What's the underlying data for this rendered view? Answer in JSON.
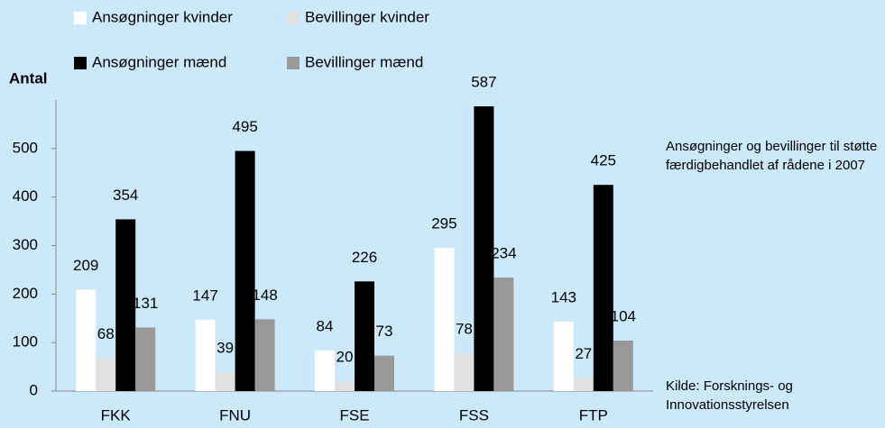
{
  "chart_data": {
    "type": "bar",
    "y_label": "Antal",
    "categories": [
      "FKK",
      "FNU",
      "FSE",
      "FSS",
      "FTP"
    ],
    "series": [
      {
        "name": "Ansøgninger kvinder",
        "color": "#ffffff",
        "values": [
          209,
          147,
          84,
          295,
          143
        ]
      },
      {
        "name": "Bevillinger kvinder",
        "color": "#e0e0e0",
        "values": [
          68,
          39,
          20,
          78,
          27
        ]
      },
      {
        "name": "Ansøgninger mænd",
        "color": "#000000",
        "values": [
          354,
          495,
          226,
          587,
          425
        ]
      },
      {
        "name": "Bevillinger mænd",
        "color": "#999999",
        "values": [
          131,
          148,
          73,
          234,
          104
        ]
      }
    ],
    "ylim": [
      0,
      600
    ],
    "yticks": [
      0,
      100,
      200,
      300,
      400,
      500
    ],
    "annotations": [
      "Ansøgninger og bevillinger til støtte færdigbehandlet af rådene i 2007",
      "Kilde: Forsknings- og Innovationsstyrelsen"
    ]
  }
}
